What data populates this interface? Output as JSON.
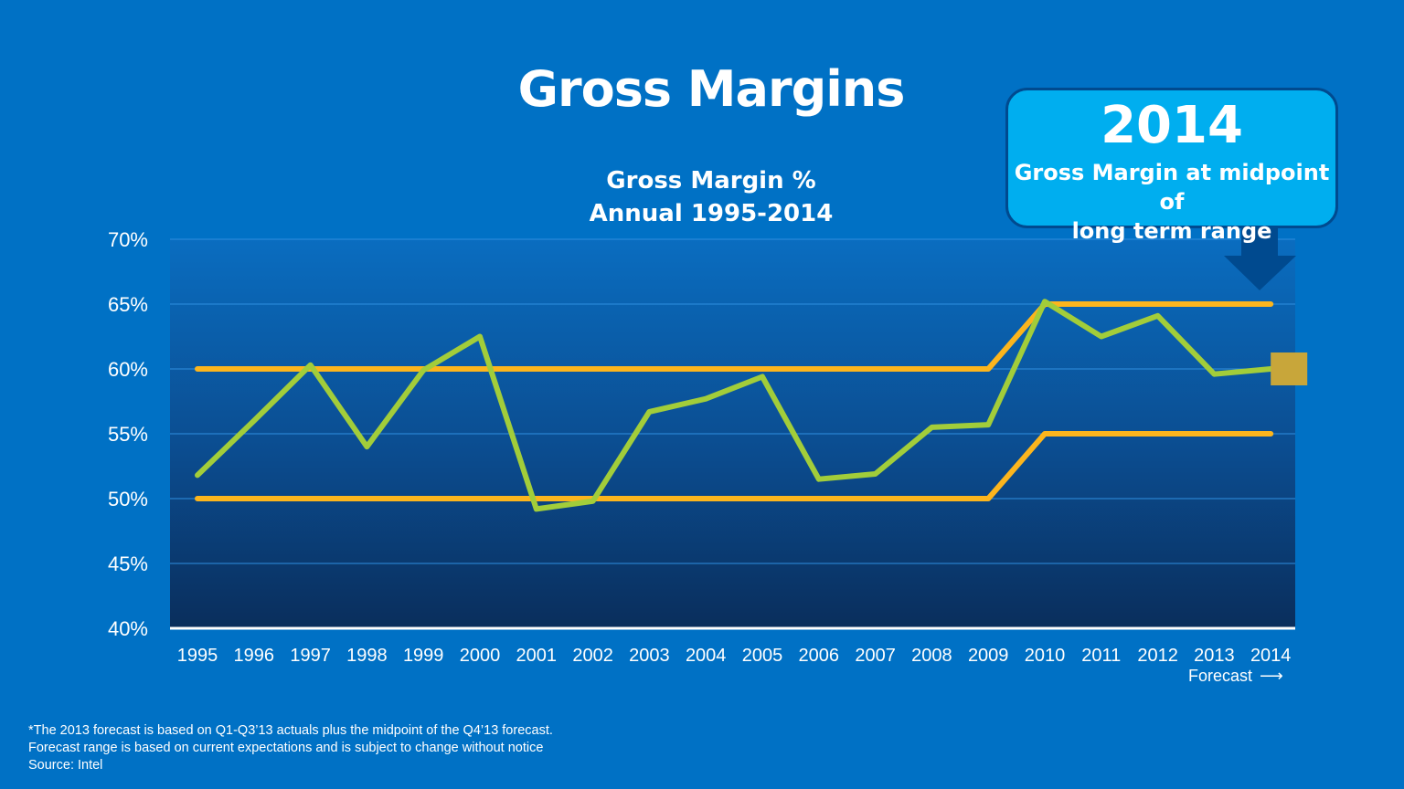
{
  "slide_title": "Gross Margins",
  "callout": {
    "year": "2014",
    "line1": "Gross Margin at midpoint of",
    "line2": "long term range"
  },
  "forecast_label": "Forecast",
  "footnotes": [
    "*The 2013 forecast  is based on Q1-Q3’13 actuals plus the midpoint of  the Q4’13 forecast.",
    "Forecast range is based on current expectations and is subject to change without notice",
    "Source: Intel"
  ],
  "colors": {
    "background": "#0071c5",
    "gross_margin_line": "#a2cd3a",
    "range_lines": "#fcb51d",
    "callout": "#00aeef",
    "callout_arrow": "#004a8f",
    "forecast_marker": "#c8a63a"
  },
  "chart_data": {
    "type": "line",
    "title_lines": [
      "Gross Margin %",
      "Annual 1995-2014"
    ],
    "categories": [
      "1995",
      "1996",
      "1997",
      "1998",
      "1999",
      "2000",
      "2001",
      "2002",
      "2003",
      "2004",
      "2005",
      "2006",
      "2007",
      "2008",
      "2009",
      "2010",
      "2011",
      "2012",
      "2013",
      "2014"
    ],
    "yticks": [
      "40%",
      "45%",
      "50%",
      "55%",
      "60%",
      "65%",
      "70%"
    ],
    "ylim": [
      40,
      70
    ],
    "grid": true,
    "series": [
      {
        "values": [
          51.8,
          56.0,
          60.3,
          54.0,
          59.9,
          62.5,
          49.2,
          49.8,
          56.7,
          57.7,
          59.4,
          51.5,
          51.9,
          55.5,
          55.7,
          65.2,
          62.5,
          64.1,
          59.6,
          60.0
        ]
      },
      {
        "values": [
          60,
          60,
          60,
          60,
          60,
          60,
          60,
          60,
          60,
          60,
          60,
          60,
          60,
          60,
          60,
          65,
          65,
          65,
          65,
          65
        ]
      },
      {
        "values": [
          50,
          50,
          50,
          50,
          50,
          50,
          50,
          50,
          50,
          50,
          50,
          50,
          50,
          50,
          50,
          55,
          55,
          55,
          55,
          55
        ]
      }
    ],
    "forecast_marker": {
      "category": "2014",
      "value": 60
    }
  }
}
